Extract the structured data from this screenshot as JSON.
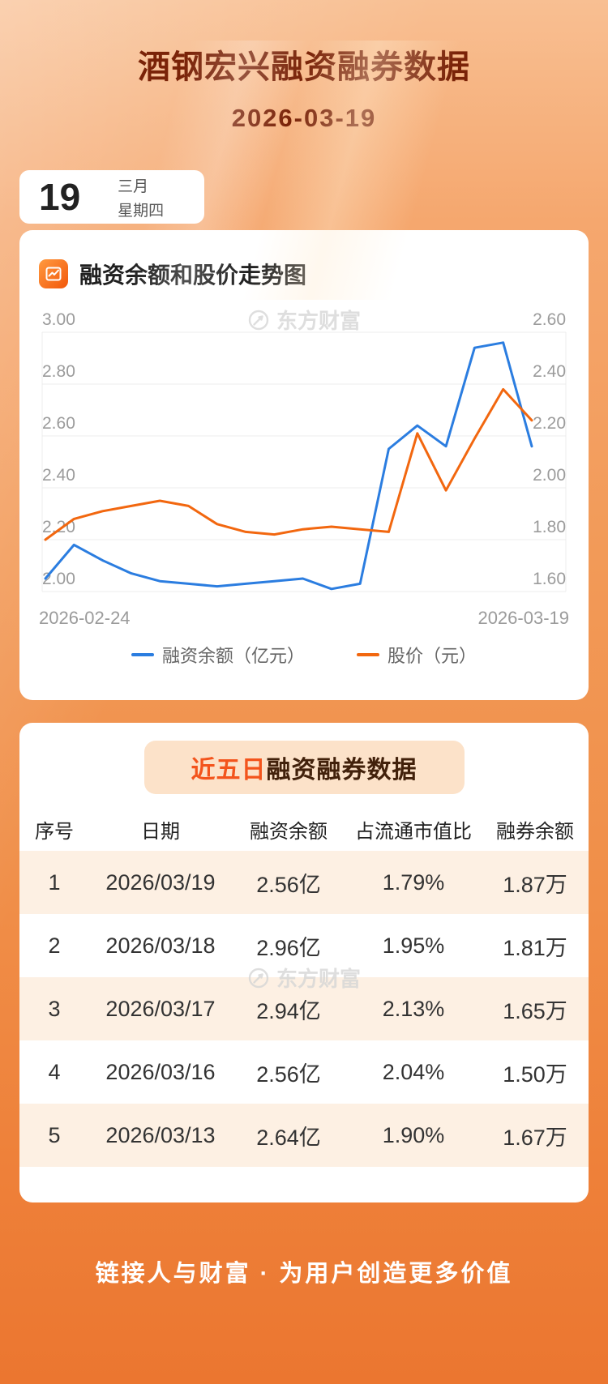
{
  "colors": {
    "accent_blue": "#2b7de0",
    "accent_orange": "#f2670f",
    "title_color": "#7a2308",
    "highlight_color": "#f3541c",
    "row_stripe": "#fdf0e3"
  },
  "header": {
    "title": "酒钢宏兴融资融券数据",
    "date": "2026-03-19"
  },
  "calendar": {
    "day": "19",
    "month": "三月",
    "weekday": "星期四"
  },
  "chart_section": {
    "title": "融资余额和股价走势图",
    "watermark": "东方财富",
    "x_start_label": "2026-02-24",
    "x_end_label": "2026-03-19",
    "legend": [
      {
        "label": "融资余额（亿元）",
        "color": "#2b7de0"
      },
      {
        "label": "股价（元）",
        "color": "#f2670f"
      }
    ]
  },
  "chart_data": {
    "type": "line",
    "title": "融资余额和股价走势图",
    "x_range": [
      "2026-02-24",
      "2026-03-19"
    ],
    "num_points": 18,
    "grid": true,
    "legend_position": "bottom",
    "left_axis": {
      "min": 2.0,
      "max": 3.0,
      "ticks": [
        "3.00",
        "2.80",
        "2.60",
        "2.40",
        "2.20",
        "2.00"
      ]
    },
    "right_axis": {
      "min": 1.6,
      "max": 2.6,
      "ticks": [
        "2.60",
        "2.40",
        "2.20",
        "2.00",
        "1.80",
        "1.60"
      ]
    },
    "series": [
      {
        "name": "融资余额（亿元）",
        "axis": "left",
        "color": "#2b7de0",
        "values": [
          2.05,
          2.18,
          2.12,
          2.07,
          2.04,
          2.03,
          2.02,
          2.03,
          2.04,
          2.05,
          2.01,
          2.03,
          2.55,
          2.64,
          2.56,
          2.94,
          2.96,
          2.56
        ]
      },
      {
        "name": "股价（元）",
        "axis": "right",
        "color": "#f2670f",
        "values": [
          1.8,
          1.88,
          1.91,
          1.93,
          1.95,
          1.93,
          1.86,
          1.83,
          1.82,
          1.84,
          1.85,
          1.84,
          1.83,
          2.21,
          1.99,
          2.19,
          2.38,
          2.26
        ]
      }
    ]
  },
  "table_section": {
    "banner_highlight": "近五日",
    "banner_rest": "融资融券数据",
    "watermark": "东方财富",
    "columns": [
      "序号",
      "日期",
      "融资余额",
      "占流通市值比",
      "融券余额"
    ],
    "rows": [
      [
        "1",
        "2026/03/19",
        "2.56亿",
        "1.79%",
        "1.87万"
      ],
      [
        "2",
        "2026/03/18",
        "2.96亿",
        "1.95%",
        "1.81万"
      ],
      [
        "3",
        "2026/03/17",
        "2.94亿",
        "2.13%",
        "1.65万"
      ],
      [
        "4",
        "2026/03/16",
        "2.56亿",
        "2.04%",
        "1.50万"
      ],
      [
        "5",
        "2026/03/13",
        "2.64亿",
        "1.90%",
        "1.67万"
      ]
    ]
  },
  "footer": {
    "slogan": "链接人与财富 · 为用户创造更多价值"
  }
}
